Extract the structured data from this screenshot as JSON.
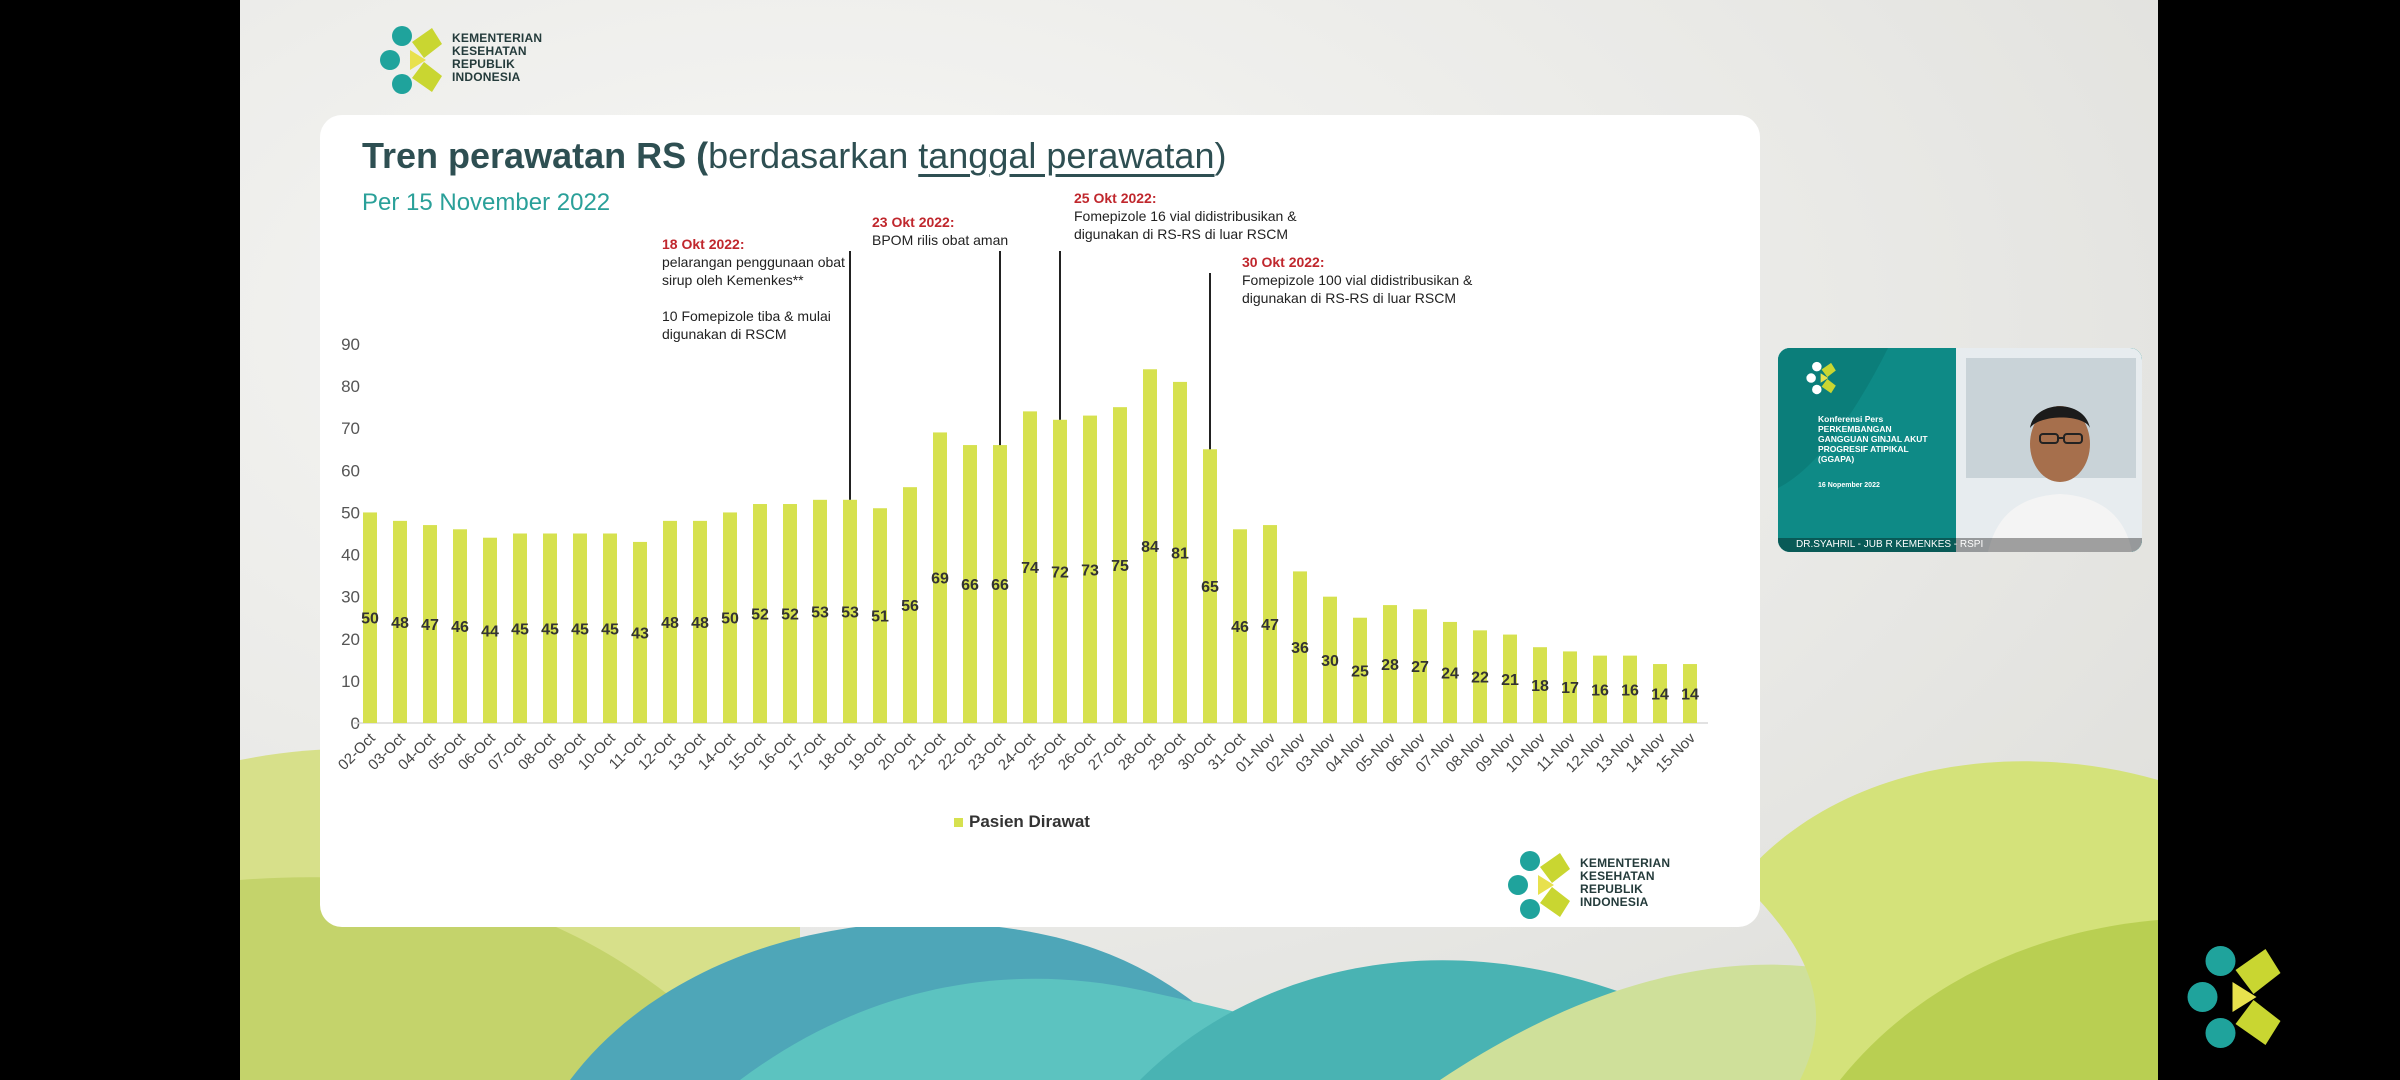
{
  "logo": {
    "org_text": "KEMENTERIAN\nKESEHATAN\nREPUBLIK\nINDONESIA"
  },
  "slide": {
    "title_bold": "Tren perawatan RS",
    "title_paren_open": " (",
    "title_normal": "berdasarkan ",
    "title_underlined": "tanggal perawatan",
    "title_paren_close": ")",
    "subtitle": "Per 15 November 2022"
  },
  "annotations": [
    {
      "date": "18 Okt 2022:",
      "text": "pelarangan penggunaan obat\nsirup oleh Kemenkes**\n\n10 Fomepizole tiba & mulai\ndigunakan di RSCM"
    },
    {
      "date": "23 Okt 2022:",
      "text": "BPOM rilis obat aman"
    },
    {
      "date": "25 Okt 2022:",
      "text": "Fomepizole 16 vial didistribusikan &\ndigunakan di RS-RS di luar RSCM"
    },
    {
      "date": "30 Okt 2022:",
      "text": "Fomepizole 100 vial didistribusikan &\ndigunakan di RS-RS di luar RSCM"
    }
  ],
  "chart_data": {
    "type": "bar",
    "title": "Tren perawatan RS (berdasarkan tanggal perawatan)",
    "subtitle": "Per 15 November 2022",
    "categories": [
      "02-Oct",
      "03-Oct",
      "04-Oct",
      "05-Oct",
      "06-Oct",
      "07-Oct",
      "08-Oct",
      "09-Oct",
      "10-Oct",
      "11-Oct",
      "12-Oct",
      "13-Oct",
      "14-Oct",
      "15-Oct",
      "16-Oct",
      "17-Oct",
      "18-Oct",
      "19-Oct",
      "20-Oct",
      "21-Oct",
      "22-Oct",
      "23-Oct",
      "24-Oct",
      "25-Oct",
      "26-Oct",
      "27-Oct",
      "28-Oct",
      "29-Oct",
      "30-Oct",
      "31-Oct",
      "01-Nov",
      "02-Nov",
      "03-Nov",
      "04-Nov",
      "05-Nov",
      "06-Nov",
      "07-Nov",
      "08-Nov",
      "09-Nov",
      "10-Nov",
      "11-Nov",
      "12-Nov",
      "13-Nov",
      "14-Nov",
      "15-Nov"
    ],
    "series": [
      {
        "name": "Pasien Dirawat",
        "values": [
          50,
          48,
          47,
          46,
          44,
          45,
          45,
          45,
          45,
          43,
          48,
          48,
          50,
          52,
          52,
          53,
          53,
          51,
          56,
          69,
          66,
          66,
          74,
          72,
          73,
          75,
          84,
          81,
          65,
          46,
          47,
          36,
          30,
          25,
          28,
          27,
          24,
          22,
          21,
          18,
          17,
          16,
          16,
          14,
          14
        ],
        "color": "#d6e14f"
      }
    ],
    "xlabel": "",
    "ylabel": "",
    "ylim": [
      0,
      90
    ],
    "yticks": [
      0,
      10,
      20,
      30,
      40,
      50,
      60,
      70,
      80,
      90
    ],
    "grid": false,
    "legend": "bottom-center",
    "event_markers": [
      "18-Oct",
      "23-Oct",
      "25-Oct",
      "30-Oct"
    ]
  },
  "video": {
    "title": "Konferensi Pers\nPERKEMBANGAN\nGANGGUAN GINJAL AKUT\nPROGRESIF ATIPIKAL\n(GGAPA)",
    "date": "16 Nopember 2022",
    "caption": "DR.SYAHRIL - JUB R KEMENKES - RSPI"
  },
  "colors": {
    "bar": "#d6e14f",
    "title": "#2e4f52",
    "subtitle": "#2aa099",
    "annotation_date": "#c0272d",
    "teal": "#0e8a86"
  }
}
